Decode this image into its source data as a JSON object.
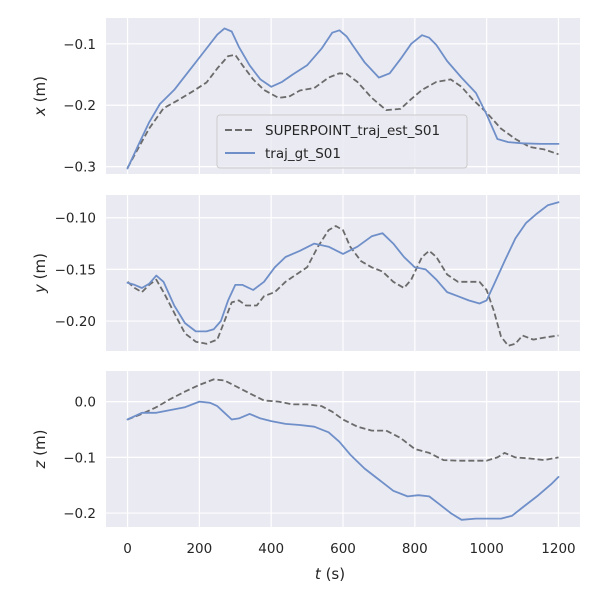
{
  "colors": {
    "panel_bg": "#eaeaf2",
    "grid": "#ffffff",
    "est": "#6b6b6b",
    "gt": "#6f8fc9",
    "legend_border": "#cccccc"
  },
  "chart_data": [
    {
      "type": "line",
      "xlabel": "",
      "ylabel": "x (m)",
      "ylabel_italic": "x",
      "ylabel_unit": " (m)",
      "xlim": [
        -60,
        1260
      ],
      "ylim": [
        -0.312,
        -0.058
      ],
      "xticks": [
        0,
        200,
        400,
        600,
        800,
        1000,
        1200
      ],
      "xtick_labels_visible": false,
      "yticks": [
        -0.3,
        -0.2,
        -0.1
      ],
      "ytick_labels": [
        "−0.3",
        "−0.2",
        "−0.1"
      ],
      "legend": {
        "position": "lower-center",
        "entries": [
          "SUPERPOINT_traj_est_S01",
          "traj_gt_S01"
        ]
      },
      "series": [
        {
          "name": "SUPERPOINT_traj_est_S01",
          "style": "dashed",
          "x": [
            0,
            30,
            60,
            100,
            140,
            180,
            220,
            250,
            280,
            300,
            320,
            350,
            380,
            420,
            450,
            480,
            520,
            560,
            590,
            610,
            640,
            680,
            720,
            760,
            790,
            820,
            860,
            900,
            930,
            960,
            1000,
            1040,
            1080,
            1120,
            1160,
            1200
          ],
          "y": [
            -0.302,
            -0.27,
            -0.238,
            -0.205,
            -0.192,
            -0.178,
            -0.163,
            -0.14,
            -0.12,
            -0.118,
            -0.135,
            -0.158,
            -0.175,
            -0.188,
            -0.186,
            -0.176,
            -0.172,
            -0.155,
            -0.148,
            -0.149,
            -0.162,
            -0.188,
            -0.208,
            -0.206,
            -0.19,
            -0.175,
            -0.162,
            -0.158,
            -0.17,
            -0.19,
            -0.212,
            -0.238,
            -0.255,
            -0.268,
            -0.272,
            -0.28
          ]
        },
        {
          "name": "traj_gt_S01",
          "style": "solid",
          "x": [
            0,
            30,
            60,
            90,
            130,
            170,
            210,
            250,
            270,
            290,
            310,
            340,
            370,
            400,
            430,
            460,
            500,
            540,
            570,
            590,
            610,
            630,
            660,
            700,
            730,
            760,
            790,
            820,
            840,
            860,
            890,
            930,
            970,
            1000,
            1030,
            1060,
            1100,
            1150,
            1200
          ],
          "y": [
            -0.303,
            -0.265,
            -0.228,
            -0.198,
            -0.175,
            -0.145,
            -0.115,
            -0.085,
            -0.075,
            -0.08,
            -0.105,
            -0.135,
            -0.158,
            -0.17,
            -0.162,
            -0.15,
            -0.135,
            -0.108,
            -0.082,
            -0.078,
            -0.088,
            -0.105,
            -0.13,
            -0.155,
            -0.148,
            -0.125,
            -0.1,
            -0.086,
            -0.09,
            -0.102,
            -0.128,
            -0.155,
            -0.18,
            -0.215,
            -0.255,
            -0.26,
            -0.262,
            -0.263,
            -0.263
          ]
        }
      ]
    },
    {
      "type": "line",
      "xlabel": "",
      "ylabel": "y (m)",
      "ylabel_italic": "y",
      "ylabel_unit": " (m)",
      "xlim": [
        -60,
        1260
      ],
      "ylim": [
        -0.229,
        -0.078
      ],
      "xticks": [
        0,
        200,
        400,
        600,
        800,
        1000,
        1200
      ],
      "xtick_labels_visible": false,
      "yticks": [
        -0.2,
        -0.15,
        -0.1
      ],
      "ytick_labels": [
        "−0.20",
        "−0.15",
        "−0.10"
      ],
      "series": [
        {
          "name": "SUPERPOINT_traj_est_S01",
          "style": "dashed",
          "x": [
            0,
            20,
            40,
            60,
            80,
            100,
            130,
            160,
            190,
            220,
            250,
            270,
            290,
            310,
            330,
            360,
            380,
            410,
            440,
            470,
            500,
            530,
            560,
            580,
            600,
            620,
            650,
            680,
            710,
            740,
            770,
            790,
            820,
            840,
            860,
            890,
            920,
            950,
            980,
            1000,
            1020,
            1040,
            1060,
            1080,
            1100,
            1130,
            1160,
            1200
          ],
          "y": [
            -0.162,
            -0.168,
            -0.172,
            -0.165,
            -0.16,
            -0.172,
            -0.192,
            -0.212,
            -0.22,
            -0.222,
            -0.218,
            -0.2,
            -0.182,
            -0.18,
            -0.185,
            -0.185,
            -0.176,
            -0.172,
            -0.162,
            -0.155,
            -0.148,
            -0.128,
            -0.112,
            -0.108,
            -0.112,
            -0.128,
            -0.142,
            -0.148,
            -0.152,
            -0.162,
            -0.168,
            -0.16,
            -0.138,
            -0.132,
            -0.138,
            -0.155,
            -0.162,
            -0.162,
            -0.162,
            -0.17,
            -0.19,
            -0.215,
            -0.224,
            -0.222,
            -0.214,
            -0.218,
            -0.216,
            -0.214
          ]
        },
        {
          "name": "traj_gt_S01",
          "style": "solid",
          "x": [
            0,
            20,
            40,
            60,
            80,
            100,
            130,
            160,
            190,
            220,
            240,
            260,
            280,
            300,
            320,
            350,
            380,
            410,
            440,
            480,
            520,
            560,
            600,
            640,
            680,
            710,
            740,
            770,
            800,
            830,
            860,
            890,
            920,
            950,
            980,
            1000,
            1020,
            1050,
            1080,
            1110,
            1140,
            1170,
            1200
          ],
          "y": [
            -0.163,
            -0.165,
            -0.168,
            -0.164,
            -0.156,
            -0.162,
            -0.185,
            -0.202,
            -0.21,
            -0.21,
            -0.208,
            -0.2,
            -0.18,
            -0.165,
            -0.165,
            -0.17,
            -0.162,
            -0.148,
            -0.138,
            -0.132,
            -0.125,
            -0.128,
            -0.135,
            -0.128,
            -0.118,
            -0.115,
            -0.125,
            -0.138,
            -0.148,
            -0.15,
            -0.16,
            -0.172,
            -0.176,
            -0.18,
            -0.183,
            -0.18,
            -0.165,
            -0.142,
            -0.12,
            -0.105,
            -0.096,
            -0.088,
            -0.085
          ]
        }
      ]
    },
    {
      "type": "line",
      "xlabel": "t (s)",
      "xlabel_italic": "t",
      "xlabel_unit": " (s)",
      "ylabel": "z (m)",
      "ylabel_italic": "z",
      "ylabel_unit": " (m)",
      "xlim": [
        -60,
        1260
      ],
      "ylim": [
        -0.225,
        0.055
      ],
      "xticks": [
        0,
        200,
        400,
        600,
        800,
        1000,
        1200
      ],
      "xtick_labels": [
        "0",
        "200",
        "400",
        "600",
        "800",
        "1000",
        "1200"
      ],
      "xtick_labels_visible": true,
      "yticks": [
        -0.2,
        -0.1,
        0.0
      ],
      "ytick_labels": [
        "−0.2",
        "−0.1",
        "0.0"
      ],
      "series": [
        {
          "name": "SUPERPOINT_traj_est_S01",
          "style": "dashed",
          "x": [
            0,
            40,
            80,
            120,
            160,
            200,
            240,
            270,
            300,
            340,
            380,
            420,
            460,
            500,
            540,
            570,
            600,
            640,
            680,
            720,
            760,
            800,
            840,
            880,
            920,
            960,
            1000,
            1030,
            1050,
            1080,
            1120,
            1160,
            1200
          ],
          "y": [
            -0.032,
            -0.022,
            -0.01,
            0.005,
            0.018,
            0.03,
            0.04,
            0.038,
            0.028,
            0.015,
            0.002,
            0.0,
            -0.005,
            -0.005,
            -0.008,
            -0.018,
            -0.032,
            -0.045,
            -0.052,
            -0.052,
            -0.065,
            -0.085,
            -0.092,
            -0.105,
            -0.106,
            -0.106,
            -0.106,
            -0.1,
            -0.092,
            -0.1,
            -0.102,
            -0.105,
            -0.1
          ]
        },
        {
          "name": "traj_gt_S01",
          "style": "solid",
          "x": [
            0,
            40,
            80,
            120,
            160,
            200,
            230,
            250,
            270,
            290,
            310,
            340,
            370,
            400,
            440,
            480,
            520,
            560,
            590,
            620,
            660,
            700,
            740,
            780,
            810,
            840,
            870,
            900,
            930,
            970,
            1010,
            1040,
            1070,
            1100,
            1140,
            1180,
            1200
          ],
          "y": [
            -0.032,
            -0.02,
            -0.02,
            -0.015,
            -0.01,
            0.0,
            -0.002,
            -0.008,
            -0.02,
            -0.032,
            -0.03,
            -0.022,
            -0.03,
            -0.035,
            -0.04,
            -0.042,
            -0.045,
            -0.055,
            -0.072,
            -0.095,
            -0.12,
            -0.14,
            -0.16,
            -0.17,
            -0.168,
            -0.17,
            -0.185,
            -0.2,
            -0.212,
            -0.21,
            -0.21,
            -0.21,
            -0.205,
            -0.19,
            -0.17,
            -0.148,
            -0.135
          ]
        }
      ]
    }
  ]
}
